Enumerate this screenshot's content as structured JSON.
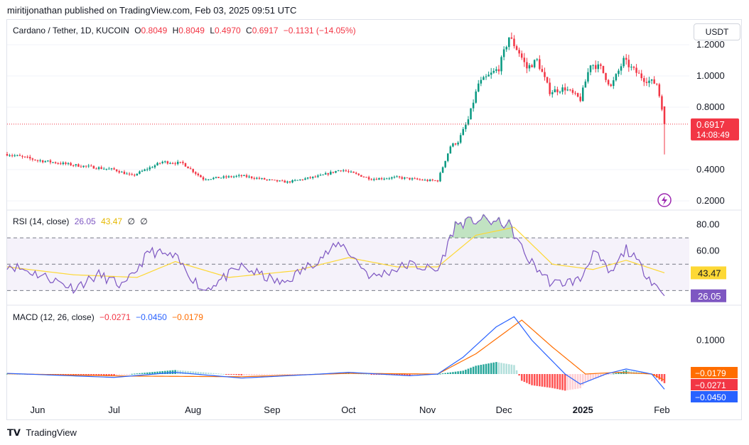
{
  "header": {
    "publisher_line": "miritijonathan published on TradingView.com, Feb 03, 2025 09:51 UTC"
  },
  "main_pane": {
    "symbol_title": "Cardano / Tether, 1D, KUCOIN",
    "open_label": "O",
    "open_value": "0.8049",
    "high_label": "H",
    "high_value": "0.8049",
    "low_label": "L",
    "low_value": "0.4970",
    "close_label": "C",
    "close_value": "0.6917",
    "change": "−0.1131 (−14.05%)",
    "currency_button": "USDT",
    "price_ticks": [
      "1.2000",
      "1.0000",
      "0.8000",
      "0.4000",
      "0.2000"
    ],
    "last_price_label": "0.6917",
    "countdown_label": "14:08:49",
    "lightning_icon": "lightning-icon"
  },
  "rsi_pane": {
    "title": "RSI (14, close)",
    "rsi_value": "26.05",
    "ma_value": "43.47",
    "extra1": "∅",
    "extra2": "∅",
    "ticks": [
      "80.00",
      "60.00"
    ],
    "ma_badge": "43.47",
    "rsi_badge": "26.05"
  },
  "macd_pane": {
    "title": "MACD (12, 26, close)",
    "hist_value": "−0.0271",
    "macd_value": "−0.0450",
    "signal_value": "−0.0179",
    "ticks": [
      "0.1000"
    ],
    "signal_badge": "−0.0179",
    "hist_badge": "−0.0271",
    "macd_badge": "−0.0450"
  },
  "time_axis": {
    "labels": [
      "Jun",
      "Jul",
      "Aug",
      "Sep",
      "Oct",
      "Nov",
      "Dec",
      "2025",
      "Feb"
    ]
  },
  "footer": {
    "logo_text": "TradingView",
    "logo_icon": "tradingview-logo-icon"
  },
  "colors": {
    "up": "#089981",
    "down": "#f23645",
    "rsi": "#7e57c2",
    "rsi_ma": "#fdd835",
    "macd": "#2962ff",
    "signal": "#ff6d00",
    "band": "#7e57c2"
  },
  "chart_data": [
    {
      "type": "candlestick",
      "title": "Cardano / Tether, 1D, KUCOIN",
      "ylim": [
        0.15,
        1.35
      ],
      "y_ticks": [
        1.2,
        1.0,
        0.8,
        0.4,
        0.2
      ],
      "x_labels": [
        "Jun",
        "Jul",
        "Aug",
        "Sep",
        "Oct",
        "Nov",
        "Dec",
        "2025",
        "Feb"
      ],
      "keypoints_close": [
        {
          "date": "2024-05-20",
          "close": 0.5
        },
        {
          "date": "2024-06-01",
          "close": 0.46
        },
        {
          "date": "2024-06-15",
          "close": 0.43
        },
        {
          "date": "2024-07-01",
          "close": 0.4
        },
        {
          "date": "2024-07-08",
          "close": 0.36
        },
        {
          "date": "2024-07-20",
          "close": 0.45
        },
        {
          "date": "2024-07-28",
          "close": 0.44
        },
        {
          "date": "2024-08-05",
          "close": 0.34
        },
        {
          "date": "2024-08-20",
          "close": 0.36
        },
        {
          "date": "2024-09-01",
          "close": 0.33
        },
        {
          "date": "2024-09-07",
          "close": 0.32
        },
        {
          "date": "2024-09-20",
          "close": 0.36
        },
        {
          "date": "2024-09-28",
          "close": 0.4
        },
        {
          "date": "2024-10-10",
          "close": 0.34
        },
        {
          "date": "2024-10-20",
          "close": 0.35
        },
        {
          "date": "2024-11-01",
          "close": 0.33
        },
        {
          "date": "2024-11-05",
          "close": 0.33
        },
        {
          "date": "2024-11-10",
          "close": 0.55
        },
        {
          "date": "2024-11-13",
          "close": 0.58
        },
        {
          "date": "2024-11-17",
          "close": 0.72
        },
        {
          "date": "2024-11-21",
          "close": 0.95
        },
        {
          "date": "2024-11-25",
          "close": 1.0
        },
        {
          "date": "2024-11-29",
          "close": 1.05
        },
        {
          "date": "2024-12-03",
          "close": 1.25
        },
        {
          "date": "2024-12-07",
          "close": 1.15
        },
        {
          "date": "2024-12-10",
          "close": 1.05
        },
        {
          "date": "2024-12-14",
          "close": 1.1
        },
        {
          "date": "2024-12-19",
          "close": 0.9
        },
        {
          "date": "2024-12-25",
          "close": 0.92
        },
        {
          "date": "2024-12-31",
          "close": 0.85
        },
        {
          "date": "2025-01-04",
          "close": 1.08
        },
        {
          "date": "2025-01-08",
          "close": 1.05
        },
        {
          "date": "2025-01-12",
          "close": 0.93
        },
        {
          "date": "2025-01-17",
          "close": 1.1
        },
        {
          "date": "2025-01-20",
          "close": 1.05
        },
        {
          "date": "2025-01-25",
          "close": 0.98
        },
        {
          "date": "2025-01-30",
          "close": 0.95
        },
        {
          "date": "2025-02-01",
          "close": 0.8
        },
        {
          "date": "2025-02-02",
          "close": 0.6917
        }
      ],
      "last_candle": {
        "open": 0.8049,
        "high": 0.8049,
        "low": 0.497,
        "close": 0.6917
      }
    },
    {
      "type": "line",
      "title": "RSI (14, close)",
      "ylim": [
        20,
        90
      ],
      "y_ticks": [
        80,
        60
      ],
      "bands": [
        70,
        50,
        30
      ],
      "series": [
        {
          "name": "RSI",
          "keypoints": [
            {
              "date": "2024-05-20",
              "value": 50
            },
            {
              "date": "2024-06-05",
              "value": 40
            },
            {
              "date": "2024-06-15",
              "value": 32
            },
            {
              "date": "2024-06-25",
              "value": 42
            },
            {
              "date": "2024-07-05",
              "value": 33
            },
            {
              "date": "2024-07-15",
              "value": 60
            },
            {
              "date": "2024-07-25",
              "value": 55
            },
            {
              "date": "2024-08-05",
              "value": 30
            },
            {
              "date": "2024-08-20",
              "value": 48
            },
            {
              "date": "2024-09-05",
              "value": 35
            },
            {
              "date": "2024-09-20",
              "value": 55
            },
            {
              "date": "2024-09-28",
              "value": 66
            },
            {
              "date": "2024-10-10",
              "value": 40
            },
            {
              "date": "2024-10-25",
              "value": 50
            },
            {
              "date": "2024-11-05",
              "value": 45
            },
            {
              "date": "2024-11-12",
              "value": 80
            },
            {
              "date": "2024-11-22",
              "value": 84
            },
            {
              "date": "2024-12-03",
              "value": 80
            },
            {
              "date": "2024-12-10",
              "value": 55
            },
            {
              "date": "2024-12-20",
              "value": 35
            },
            {
              "date": "2024-12-31",
              "value": 38
            },
            {
              "date": "2025-01-05",
              "value": 60
            },
            {
              "date": "2025-01-12",
              "value": 42
            },
            {
              "date": "2025-01-18",
              "value": 62
            },
            {
              "date": "2025-01-25",
              "value": 45
            },
            {
              "date": "2025-02-02",
              "value": 26.05
            }
          ]
        },
        {
          "name": "RSI-based MA",
          "keypoints": [
            {
              "date": "2024-05-20",
              "value": 48
            },
            {
              "date": "2024-06-15",
              "value": 42
            },
            {
              "date": "2024-07-10",
              "value": 40
            },
            {
              "date": "2024-07-25",
              "value": 52
            },
            {
              "date": "2024-08-15",
              "value": 40
            },
            {
              "date": "2024-09-10",
              "value": 45
            },
            {
              "date": "2024-10-01",
              "value": 55
            },
            {
              "date": "2024-10-20",
              "value": 48
            },
            {
              "date": "2024-11-05",
              "value": 48
            },
            {
              "date": "2024-11-20",
              "value": 72
            },
            {
              "date": "2024-12-05",
              "value": 78
            },
            {
              "date": "2024-12-20",
              "value": 50
            },
            {
              "date": "2025-01-05",
              "value": 46
            },
            {
              "date": "2025-01-18",
              "value": 53
            },
            {
              "date": "2025-02-02",
              "value": 43.47
            }
          ]
        }
      ]
    },
    {
      "type": "line",
      "title": "MACD (12, 26, close)",
      "ylim": [
        -0.08,
        0.2
      ],
      "y_ticks": [
        0.1
      ],
      "series": [
        {
          "name": "MACD",
          "keypoints": [
            {
              "date": "2024-05-20",
              "value": 0.002
            },
            {
              "date": "2024-07-01",
              "value": -0.01
            },
            {
              "date": "2024-07-25",
              "value": 0.005
            },
            {
              "date": "2024-08-20",
              "value": -0.012
            },
            {
              "date": "2024-09-20",
              "value": 0.0
            },
            {
              "date": "2024-10-01",
              "value": 0.005
            },
            {
              "date": "2024-10-25",
              "value": -0.005
            },
            {
              "date": "2024-11-05",
              "value": 0.0
            },
            {
              "date": "2024-11-15",
              "value": 0.05
            },
            {
              "date": "2024-11-28",
              "value": 0.14
            },
            {
              "date": "2024-12-05",
              "value": 0.17
            },
            {
              "date": "2024-12-12",
              "value": 0.1
            },
            {
              "date": "2024-12-25",
              "value": 0.0
            },
            {
              "date": "2024-12-31",
              "value": -0.03
            },
            {
              "date": "2025-01-10",
              "value": 0.0
            },
            {
              "date": "2025-01-18",
              "value": 0.015
            },
            {
              "date": "2025-01-28",
              "value": 0.0
            },
            {
              "date": "2025-02-02",
              "value": -0.045
            }
          ]
        },
        {
          "name": "Signal",
          "keypoints": [
            {
              "date": "2024-05-20",
              "value": 0.001
            },
            {
              "date": "2024-07-05",
              "value": -0.006
            },
            {
              "date": "2024-08-20",
              "value": -0.008
            },
            {
              "date": "2024-10-01",
              "value": 0.002
            },
            {
              "date": "2024-11-05",
              "value": 0.0
            },
            {
              "date": "2024-11-20",
              "value": 0.06
            },
            {
              "date": "2024-12-08",
              "value": 0.16
            },
            {
              "date": "2024-12-20",
              "value": 0.08
            },
            {
              "date": "2025-01-02",
              "value": 0.0
            },
            {
              "date": "2025-01-15",
              "value": 0.005
            },
            {
              "date": "2025-01-28",
              "value": 0.0
            },
            {
              "date": "2025-02-02",
              "value": -0.0179
            }
          ]
        },
        {
          "name": "Histogram",
          "keypoints": [
            {
              "date": "2024-11-12",
              "value": 0.01
            },
            {
              "date": "2024-11-25",
              "value": 0.04
            },
            {
              "date": "2024-12-05",
              "value": 0.01
            },
            {
              "date": "2024-12-20",
              "value": -0.045
            },
            {
              "date": "2025-01-10",
              "value": 0.012
            },
            {
              "date": "2025-02-02",
              "value": -0.0271
            }
          ]
        }
      ]
    }
  ]
}
